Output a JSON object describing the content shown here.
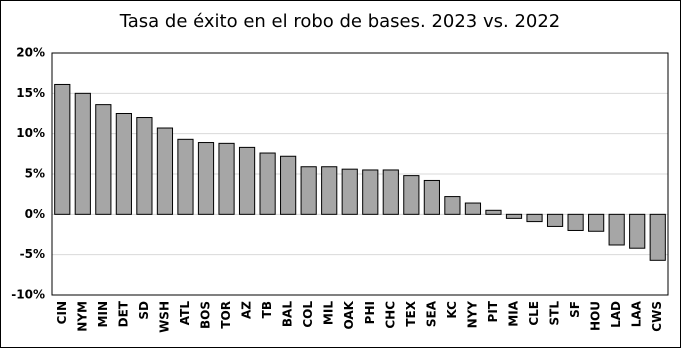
{
  "chart_data": {
    "type": "bar",
    "title": "Tasa de éxito en el robo de bases. 2023 vs. 2022",
    "categories": [
      "CIN",
      "NYM",
      "MIN",
      "DET",
      "SD",
      "WSH",
      "ATL",
      "BOS",
      "TOR",
      "AZ",
      "TB",
      "BAL",
      "COL",
      "MIL",
      "OAK",
      "PHI",
      "CHC",
      "TEX",
      "SEA",
      "KC",
      "NYY",
      "PIT",
      "MIA",
      "CLE",
      "STL",
      "SF",
      "HOU",
      "LAD",
      "LAA",
      "CWS"
    ],
    "values": [
      16.1,
      15.0,
      13.6,
      12.5,
      12.0,
      10.7,
      9.3,
      8.9,
      8.8,
      8.3,
      7.6,
      7.2,
      5.9,
      5.9,
      5.6,
      5.5,
      5.5,
      4.8,
      4.2,
      2.2,
      1.4,
      0.5,
      -0.5,
      -0.9,
      -1.5,
      -2.0,
      -2.1,
      -3.8,
      -4.2,
      -5.7
    ],
    "color": "#a6a6a6",
    "ylim": [
      -10,
      20
    ],
    "yticks": [
      {
        "value": -10,
        "label": "-10%"
      },
      {
        "value": -5,
        "label": "-5%"
      },
      {
        "value": 0,
        "label": "0%"
      },
      {
        "value": 5,
        "label": "5%"
      },
      {
        "value": 10,
        "label": "10%"
      },
      {
        "value": 15,
        "label": "15%"
      },
      {
        "value": 20,
        "label": "20%"
      }
    ],
    "grid": true
  }
}
